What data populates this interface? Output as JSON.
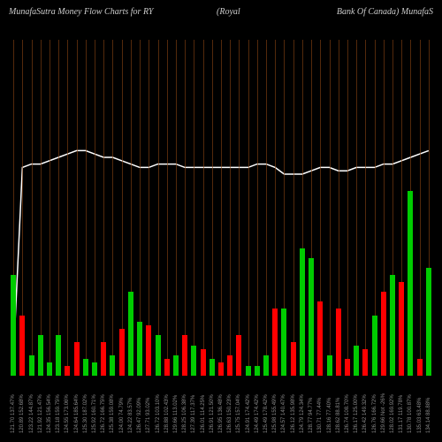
{
  "title": {
    "left": "MunafaSutra  Money Flow  Charts for RY",
    "mid": "(Royal",
    "right": "Bank Of Canada) MunafaS"
  },
  "chart": {
    "type": "bar+line",
    "background_color": "#000000",
    "grid_color": "#8B4513",
    "line_color": "#ffffff",
    "bar_colors": {
      "up": "#00cc00",
      "down": "#ff0000"
    },
    "n_bars": 47,
    "ylim_bar": [
      0,
      100
    ],
    "ylim_line": [
      0,
      100
    ],
    "bars": [
      {
        "v": 30,
        "c": "up"
      },
      {
        "v": 18,
        "c": "down"
      },
      {
        "v": 6,
        "c": "up"
      },
      {
        "v": 12,
        "c": "up"
      },
      {
        "v": 4,
        "c": "up"
      },
      {
        "v": 12,
        "c": "up"
      },
      {
        "v": 3,
        "c": "down"
      },
      {
        "v": 10,
        "c": "down"
      },
      {
        "v": 5,
        "c": "up"
      },
      {
        "v": 4,
        "c": "up"
      },
      {
        "v": 10,
        "c": "down"
      },
      {
        "v": 6,
        "c": "up"
      },
      {
        "v": 14,
        "c": "down"
      },
      {
        "v": 25,
        "c": "up"
      },
      {
        "v": 16,
        "c": "up"
      },
      {
        "v": 15,
        "c": "down"
      },
      {
        "v": 12,
        "c": "up"
      },
      {
        "v": 5,
        "c": "down"
      },
      {
        "v": 6,
        "c": "up"
      },
      {
        "v": 12,
        "c": "down"
      },
      {
        "v": 9,
        "c": "up"
      },
      {
        "v": 8,
        "c": "down"
      },
      {
        "v": 5,
        "c": "up"
      },
      {
        "v": 4,
        "c": "down"
      },
      {
        "v": 6,
        "c": "down"
      },
      {
        "v": 12,
        "c": "down"
      },
      {
        "v": 3,
        "c": "up"
      },
      {
        "v": 3,
        "c": "up"
      },
      {
        "v": 6,
        "c": "up"
      },
      {
        "v": 20,
        "c": "down"
      },
      {
        "v": 20,
        "c": "up"
      },
      {
        "v": 10,
        "c": "down"
      },
      {
        "v": 38,
        "c": "up"
      },
      {
        "v": 35,
        "c": "up"
      },
      {
        "v": 22,
        "c": "down"
      },
      {
        "v": 6,
        "c": "up"
      },
      {
        "v": 20,
        "c": "down"
      },
      {
        "v": 5,
        "c": "down"
      },
      {
        "v": 9,
        "c": "up"
      },
      {
        "v": 8,
        "c": "down"
      },
      {
        "v": 18,
        "c": "up"
      },
      {
        "v": 25,
        "c": "down"
      },
      {
        "v": 30,
        "c": "up"
      },
      {
        "v": 28,
        "c": "down"
      },
      {
        "v": 55,
        "c": "up"
      },
      {
        "v": 5,
        "c": "down"
      },
      {
        "v": 32,
        "c": "up"
      }
    ],
    "line_points": [
      5,
      62,
      63,
      63,
      64,
      65,
      66,
      67,
      67,
      66,
      65,
      65,
      64,
      63,
      62,
      62,
      63,
      63,
      63,
      62,
      62,
      62,
      62,
      62,
      62,
      62,
      62,
      63,
      63,
      62,
      60,
      60,
      60,
      61,
      62,
      62,
      61,
      61,
      62,
      62,
      62,
      63,
      63,
      64,
      65,
      66,
      67
    ],
    "x_labels": [
      "121.70 137.47%",
      "120.89 152.68%",
      "123.22 144.87%",
      "121.92 121.47%",
      "124.35 156.54%",
      "123.18 159.75%",
      "124.55 173.06%",
      "124.64 185.64%",
      "125.30 187.02%",
      "125.92 160.71%",
      "126.72 166.75%",
      "125.38 159.08%",
      "124.00 74.79%",
      "124.22 83.57%",
      "126.47 92.09%",
      "127.71 93.02%",
      "126.72 103.10%",
      "128.88 102.43%",
      "129.66 113.02%",
      "128.25 106.38%",
      "127.39 117.37%",
      "126.01 114.25%",
      "126.91 121.50%",
      "126.95 136.48%",
      "126.63 150.23%",
      "125.75 157.04%",
      "124.91 174.42%",
      "124.49 174.42%",
      "125.49 178.42%",
      "125.98 155.49%",
      "124.57 140.47%",
      "126.12 135.98%",
      "124.79 124.34%",
      "128.77 94.77%",
      "130.71 77.44%",
      "128.16 77.40%",
      "128.62 88.81%",
      "126.74 108.70%",
      "126.17 125.00%",
      "126.42 149.32%",
      "126.76 166.72%",
      "129.66 Not -26%",
      "128.02 169.92%",
      "131.17 119.78%",
      "130.78 100.87%",
      "135.03 63.48%",
      "134.14 88.88%"
    ]
  }
}
